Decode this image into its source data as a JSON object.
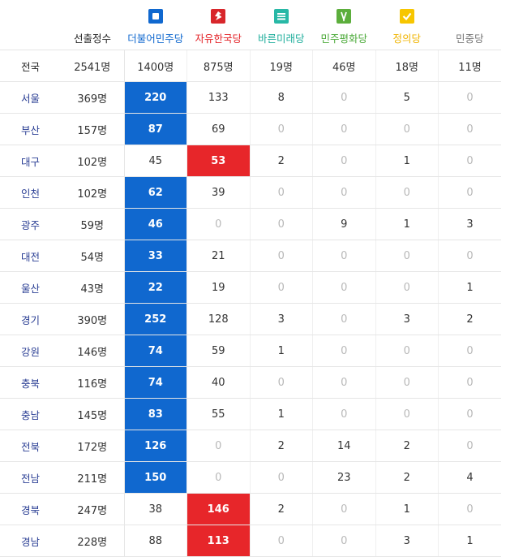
{
  "header": {
    "first": "",
    "total": "선출정수",
    "parties": [
      {
        "key": "minjoo",
        "label": "더불어민주당",
        "color": "#1068cf",
        "icon": "minjoo-logo-icon"
      },
      {
        "key": "jayu",
        "label": "자유한국당",
        "color": "#e4252a",
        "icon": "jayu-logo-icon"
      },
      {
        "key": "bareun",
        "label": "바른미래당",
        "color": "#28b8a6",
        "icon": "bareun-logo-icon"
      },
      {
        "key": "minpyeong",
        "label": "민주평화당",
        "color": "#4caa3a",
        "icon": "minpyeong-logo-icon"
      },
      {
        "key": "jeongui",
        "label": "정의당",
        "color": "#f0b400",
        "icon": "jeongui-logo-icon"
      },
      {
        "key": "minjung",
        "label": "민중당",
        "color": "#777777",
        "icon": ""
      }
    ]
  },
  "rows": [
    {
      "region": "전국",
      "total": "2541명",
      "values": [
        "1400명",
        "875명",
        "19명",
        "46명",
        "18명",
        "11명"
      ],
      "win": ""
    },
    {
      "region": "서울",
      "total": "369명",
      "values": [
        "220",
        "133",
        "8",
        "0",
        "5",
        "0"
      ],
      "win": "blue"
    },
    {
      "region": "부산",
      "total": "157명",
      "values": [
        "87",
        "69",
        "0",
        "0",
        "0",
        "0"
      ],
      "win": "blue"
    },
    {
      "region": "대구",
      "total": "102명",
      "values": [
        "45",
        "53",
        "2",
        "0",
        "1",
        "0"
      ],
      "win": "red"
    },
    {
      "region": "인천",
      "total": "102명",
      "values": [
        "62",
        "39",
        "0",
        "0",
        "0",
        "0"
      ],
      "win": "blue"
    },
    {
      "region": "광주",
      "total": "59명",
      "values": [
        "46",
        "0",
        "0",
        "9",
        "1",
        "3"
      ],
      "win": "blue"
    },
    {
      "region": "대전",
      "total": "54명",
      "values": [
        "33",
        "21",
        "0",
        "0",
        "0",
        "0"
      ],
      "win": "blue"
    },
    {
      "region": "울산",
      "total": "43명",
      "values": [
        "22",
        "19",
        "0",
        "0",
        "0",
        "1"
      ],
      "win": "blue"
    },
    {
      "region": "경기",
      "total": "390명",
      "values": [
        "252",
        "128",
        "3",
        "0",
        "3",
        "2"
      ],
      "win": "blue"
    },
    {
      "region": "강원",
      "total": "146명",
      "values": [
        "74",
        "59",
        "1",
        "0",
        "0",
        "0"
      ],
      "win": "blue"
    },
    {
      "region": "충북",
      "total": "116명",
      "values": [
        "74",
        "40",
        "0",
        "0",
        "0",
        "0"
      ],
      "win": "blue"
    },
    {
      "region": "충남",
      "total": "145명",
      "values": [
        "83",
        "55",
        "1",
        "0",
        "0",
        "0"
      ],
      "win": "blue"
    },
    {
      "region": "전북",
      "total": "172명",
      "values": [
        "126",
        "0",
        "2",
        "14",
        "2",
        "0"
      ],
      "win": "blue"
    },
    {
      "region": "전남",
      "total": "211명",
      "values": [
        "150",
        "0",
        "0",
        "23",
        "2",
        "4"
      ],
      "win": "blue"
    },
    {
      "region": "경북",
      "total": "247명",
      "values": [
        "38",
        "146",
        "2",
        "0",
        "1",
        "0"
      ],
      "win": "red"
    },
    {
      "region": "경남",
      "total": "228명",
      "values": [
        "88",
        "113",
        "0",
        "0",
        "3",
        "1"
      ],
      "win": "red"
    }
  ]
}
